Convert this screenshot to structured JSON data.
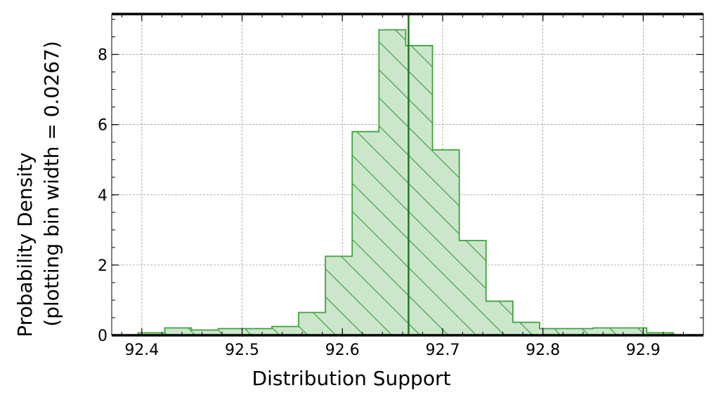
{
  "chart_data": {
    "type": "bar",
    "subtype": "step-histogram",
    "xlabel": "Distribution Support",
    "ylabel_line1": "Probability Density",
    "ylabel_line2": "(plotting bin width = 0.0267)",
    "bin_width": 0.0267,
    "xlim": [
      92.37,
      92.96
    ],
    "ylim": [
      0,
      9.15
    ],
    "x_ticks": [
      "92.4",
      "92.5",
      "92.6",
      "92.7",
      "92.8",
      "92.9"
    ],
    "y_ticks": [
      "0",
      "2",
      "4",
      "6",
      "8"
    ],
    "grid": true,
    "hatch": "diagonal",
    "marker_line_x": 92.666,
    "bins": [
      {
        "x0": 92.3962,
        "x1": 92.4229,
        "density": 0.07
      },
      {
        "x0": 92.4229,
        "x1": 92.4496,
        "density": 0.21
      },
      {
        "x0": 92.4496,
        "x1": 92.4763,
        "density": 0.15
      },
      {
        "x0": 92.4763,
        "x1": 92.503,
        "density": 0.19
      },
      {
        "x0": 92.503,
        "x1": 92.5297,
        "density": 0.19
      },
      {
        "x0": 92.5297,
        "x1": 92.5564,
        "density": 0.25
      },
      {
        "x0": 92.5564,
        "x1": 92.5831,
        "density": 0.65
      },
      {
        "x0": 92.5831,
        "x1": 92.6098,
        "density": 2.25
      },
      {
        "x0": 92.6098,
        "x1": 92.6365,
        "density": 5.8
      },
      {
        "x0": 92.6365,
        "x1": 92.6632,
        "density": 8.7
      },
      {
        "x0": 92.6632,
        "x1": 92.6899,
        "density": 8.25
      },
      {
        "x0": 92.6899,
        "x1": 92.7166,
        "density": 5.28
      },
      {
        "x0": 92.7166,
        "x1": 92.7433,
        "density": 2.7
      },
      {
        "x0": 92.7433,
        "x1": 92.77,
        "density": 0.97
      },
      {
        "x0": 92.77,
        "x1": 92.7967,
        "density": 0.37
      },
      {
        "x0": 92.7967,
        "x1": 92.8234,
        "density": 0.19
      },
      {
        "x0": 92.8234,
        "x1": 92.8501,
        "density": 0.19
      },
      {
        "x0": 92.8501,
        "x1": 92.8768,
        "density": 0.21
      },
      {
        "x0": 92.8768,
        "x1": 92.9035,
        "density": 0.21
      },
      {
        "x0": 92.9035,
        "x1": 92.9302,
        "density": 0.07
      }
    ],
    "colors": {
      "fill": "#cce6cc",
      "edge": "#3fa23f",
      "marker_line": "#1e7b1e",
      "grid": "#999999"
    }
  }
}
